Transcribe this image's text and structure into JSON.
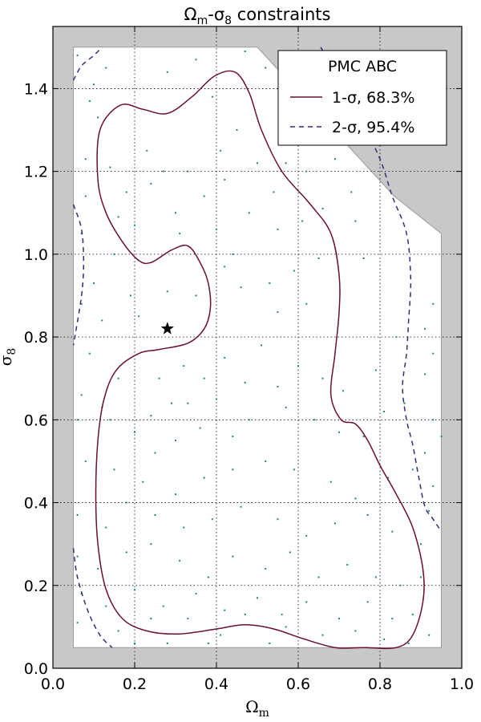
{
  "chart_data": {
    "type": "scatter",
    "title": "Ωm-σ8 constraints",
    "xlabel": "Ωm",
    "ylabel": "σ8",
    "xlim": [
      0.0,
      1.0
    ],
    "ylim": [
      0.0,
      1.55
    ],
    "x_ticks": [
      "0.0",
      "0.2",
      "0.4",
      "0.6",
      "0.8",
      "1.0"
    ],
    "y_ticks": [
      "0.0",
      "0.2",
      "0.4",
      "0.6",
      "0.8",
      "1.0",
      "1.2",
      "1.4"
    ],
    "grid": true,
    "legend": {
      "title": "PMC ABC",
      "placement": "top-right",
      "entries": [
        {
          "label": "1-σ, 68.3%",
          "style": "solid",
          "color": "#6b0f2f"
        },
        {
          "label": "2-σ, 95.4%",
          "style": "dashed",
          "color": "#2e2f7a"
        }
      ]
    },
    "excluded_region_color": "#c8c8c8",
    "prior_region": [
      [
        0.05,
        0.05
      ],
      [
        0.95,
        0.05
      ],
      [
        0.95,
        1.05
      ],
      [
        0.835,
        1.14
      ],
      [
        0.5,
        1.5
      ],
      [
        0.05,
        1.5
      ]
    ],
    "fiducial_marker": {
      "x": 0.28,
      "y": 0.82,
      "symbol": "star"
    },
    "series": [
      {
        "name": "1-σ, 68.3%",
        "style": "solid",
        "color": "#6b0f2f",
        "closed": true,
        "points": [
          [
            0.24,
            0.98
          ],
          [
            0.29,
            1.01
          ],
          [
            0.33,
            1.02
          ],
          [
            0.36,
            0.98
          ],
          [
            0.38,
            0.93
          ],
          [
            0.385,
            0.87
          ],
          [
            0.37,
            0.82
          ],
          [
            0.33,
            0.785
          ],
          [
            0.26,
            0.77
          ],
          [
            0.21,
            0.76
          ],
          [
            0.155,
            0.72
          ],
          [
            0.125,
            0.65
          ],
          [
            0.11,
            0.55
          ],
          [
            0.105,
            0.42
          ],
          [
            0.11,
            0.3
          ],
          [
            0.13,
            0.19
          ],
          [
            0.17,
            0.12
          ],
          [
            0.23,
            0.09
          ],
          [
            0.31,
            0.083
          ],
          [
            0.4,
            0.095
          ],
          [
            0.47,
            0.105
          ],
          [
            0.54,
            0.095
          ],
          [
            0.61,
            0.072
          ],
          [
            0.69,
            0.05
          ],
          [
            0.76,
            0.05
          ],
          [
            0.84,
            0.05
          ],
          [
            0.88,
            0.08
          ],
          [
            0.905,
            0.16
          ],
          [
            0.905,
            0.24
          ],
          [
            0.88,
            0.34
          ],
          [
            0.84,
            0.42
          ],
          [
            0.8,
            0.49
          ],
          [
            0.77,
            0.55
          ],
          [
            0.74,
            0.59
          ],
          [
            0.705,
            0.6
          ],
          [
            0.68,
            0.66
          ],
          [
            0.69,
            0.76
          ],
          [
            0.7,
            0.86
          ],
          [
            0.7,
            0.95
          ],
          [
            0.68,
            1.05
          ],
          [
            0.63,
            1.12
          ],
          [
            0.56,
            1.2
          ],
          [
            0.51,
            1.3
          ],
          [
            0.48,
            1.39
          ],
          [
            0.445,
            1.44
          ],
          [
            0.395,
            1.43
          ],
          [
            0.34,
            1.38
          ],
          [
            0.28,
            1.34
          ],
          [
            0.22,
            1.35
          ],
          [
            0.165,
            1.36
          ],
          [
            0.115,
            1.3
          ],
          [
            0.11,
            1.18
          ],
          [
            0.13,
            1.1
          ],
          [
            0.17,
            1.03
          ],
          [
            0.21,
            0.985
          ]
        ]
      },
      {
        "name": "2-σ, 95.4%",
        "style": "dashed",
        "color": "#2e2f7a",
        "closed": false,
        "segments": [
          [
            [
              0.05,
              1.42
            ],
            [
              0.07,
              1.455
            ],
            [
              0.1,
              1.48
            ],
            [
              0.12,
              1.5
            ]
          ],
          [
            [
              0.05,
              1.12
            ],
            [
              0.07,
              1.06
            ],
            [
              0.075,
              0.98
            ],
            [
              0.07,
              0.9
            ],
            [
              0.05,
              0.78
            ]
          ],
          [
            [
              0.05,
              0.29
            ],
            [
              0.06,
              0.22
            ],
            [
              0.085,
              0.14
            ],
            [
              0.115,
              0.08
            ],
            [
              0.145,
              0.05
            ]
          ],
          [
            [
              0.655,
              1.5
            ],
            [
              0.7,
              1.42
            ],
            [
              0.75,
              1.33
            ],
            [
              0.8,
              1.23
            ],
            [
              0.83,
              1.14
            ],
            [
              0.865,
              1.05
            ],
            [
              0.875,
              0.94
            ],
            [
              0.87,
              0.84
            ],
            [
              0.865,
              0.76
            ],
            [
              0.855,
              0.68
            ],
            [
              0.865,
              0.6
            ],
            [
              0.88,
              0.54
            ],
            [
              0.895,
              0.46
            ],
            [
              0.91,
              0.39
            ],
            [
              0.93,
              0.36
            ],
            [
              0.95,
              0.33
            ]
          ]
        ]
      },
      {
        "name": "",
        "style": "dots",
        "color": "#1a8a6a",
        "points": [
          [
            0.06,
            1.48
          ],
          [
            0.1,
            1.41
          ],
          [
            0.13,
            1.45
          ],
          [
            0.09,
            1.37
          ],
          [
            0.11,
            1.33
          ],
          [
            0.28,
            1.44
          ],
          [
            0.35,
            1.47
          ],
          [
            0.47,
            1.49
          ],
          [
            0.39,
            1.38
          ],
          [
            0.52,
            1.45
          ],
          [
            0.45,
            1.3
          ],
          [
            0.56,
            1.32
          ],
          [
            0.58,
            1.4
          ],
          [
            0.63,
            1.29
          ],
          [
            0.62,
            1.2
          ],
          [
            0.57,
            1.22
          ],
          [
            0.69,
            1.23
          ],
          [
            0.73,
            1.15
          ],
          [
            0.66,
            1.11
          ],
          [
            0.74,
            1.08
          ],
          [
            0.76,
            0.99
          ],
          [
            0.61,
            1.08
          ],
          [
            0.54,
            1.15
          ],
          [
            0.5,
            1.22
          ],
          [
            0.41,
            1.25
          ],
          [
            0.3,
            1.1
          ],
          [
            0.27,
            1.2
          ],
          [
            0.23,
            1.25
          ],
          [
            0.18,
            1.15
          ],
          [
            0.16,
            1.09
          ],
          [
            0.2,
            1.07
          ],
          [
            0.31,
            1.05
          ],
          [
            0.4,
            1.06
          ],
          [
            0.44,
            1.0
          ],
          [
            0.48,
            1.1
          ],
          [
            0.55,
            1.06
          ],
          [
            0.59,
            0.96
          ],
          [
            0.65,
            0.99
          ],
          [
            0.53,
            0.93
          ],
          [
            0.46,
            0.92
          ],
          [
            0.42,
            0.97
          ],
          [
            0.35,
            0.9
          ],
          [
            0.19,
            0.9
          ],
          [
            0.28,
            0.91
          ],
          [
            0.21,
            0.85
          ],
          [
            0.1,
            0.93
          ],
          [
            0.07,
            0.88
          ],
          [
            0.12,
            0.84
          ],
          [
            0.09,
            0.76
          ],
          [
            0.16,
            0.7
          ],
          [
            0.07,
            0.66
          ],
          [
            0.12,
            0.63
          ],
          [
            0.24,
            0.61
          ],
          [
            0.29,
            0.64
          ],
          [
            0.32,
            0.73
          ],
          [
            0.37,
            0.7
          ],
          [
            0.42,
            0.75
          ],
          [
            0.51,
            0.78
          ],
          [
            0.55,
            0.86
          ],
          [
            0.62,
            0.88
          ],
          [
            0.6,
            0.73
          ],
          [
            0.66,
            0.7
          ],
          [
            0.71,
            0.67
          ],
          [
            0.79,
            0.72
          ],
          [
            0.84,
            0.8
          ],
          [
            0.91,
            0.82
          ],
          [
            0.93,
            0.88
          ],
          [
            0.93,
            0.76
          ],
          [
            0.81,
            0.62
          ],
          [
            0.76,
            0.56
          ],
          [
            0.7,
            0.57
          ],
          [
            0.64,
            0.6
          ],
          [
            0.57,
            0.63
          ],
          [
            0.48,
            0.6
          ],
          [
            0.44,
            0.56
          ],
          [
            0.36,
            0.58
          ],
          [
            0.3,
            0.55
          ],
          [
            0.25,
            0.52
          ],
          [
            0.2,
            0.57
          ],
          [
            0.14,
            0.6
          ],
          [
            0.06,
            0.6
          ],
          [
            0.08,
            0.5
          ],
          [
            0.15,
            0.48
          ],
          [
            0.22,
            0.45
          ],
          [
            0.3,
            0.42
          ],
          [
            0.37,
            0.46
          ],
          [
            0.44,
            0.48
          ],
          [
            0.52,
            0.5
          ],
          [
            0.59,
            0.48
          ],
          [
            0.68,
            0.45
          ],
          [
            0.74,
            0.41
          ],
          [
            0.82,
            0.46
          ],
          [
            0.91,
            0.52
          ],
          [
            0.93,
            0.6
          ],
          [
            0.88,
            0.48
          ],
          [
            0.06,
            0.37
          ],
          [
            0.13,
            0.34
          ],
          [
            0.18,
            0.4
          ],
          [
            0.25,
            0.37
          ],
          [
            0.32,
            0.34
          ],
          [
            0.39,
            0.36
          ],
          [
            0.46,
            0.39
          ],
          [
            0.55,
            0.36
          ],
          [
            0.62,
            0.32
          ],
          [
            0.69,
            0.35
          ],
          [
            0.77,
            0.37
          ],
          [
            0.83,
            0.33
          ],
          [
            0.9,
            0.3
          ],
          [
            0.06,
            0.27
          ],
          [
            0.11,
            0.24
          ],
          [
            0.18,
            0.28
          ],
          [
            0.24,
            0.3
          ],
          [
            0.31,
            0.26
          ],
          [
            0.38,
            0.22
          ],
          [
            0.44,
            0.27
          ],
          [
            0.52,
            0.24
          ],
          [
            0.58,
            0.28
          ],
          [
            0.65,
            0.22
          ],
          [
            0.72,
            0.25
          ],
          [
            0.79,
            0.22
          ],
          [
            0.85,
            0.2
          ],
          [
            0.9,
            0.22
          ],
          [
            0.07,
            0.18
          ],
          [
            0.13,
            0.15
          ],
          [
            0.2,
            0.19
          ],
          [
            0.27,
            0.15
          ],
          [
            0.35,
            0.18
          ],
          [
            0.42,
            0.14
          ],
          [
            0.5,
            0.17
          ],
          [
            0.56,
            0.13
          ],
          [
            0.62,
            0.16
          ],
          [
            0.7,
            0.12
          ],
          [
            0.77,
            0.16
          ],
          [
            0.83,
            0.12
          ],
          [
            0.88,
            0.13
          ],
          [
            0.06,
            0.11
          ],
          [
            0.16,
            0.09
          ],
          [
            0.24,
            0.12
          ],
          [
            0.33,
            0.12
          ],
          [
            0.41,
            0.08
          ],
          [
            0.47,
            0.13
          ],
          [
            0.57,
            0.1
          ],
          [
            0.66,
            0.08
          ],
          [
            0.74,
            0.09
          ],
          [
            0.81,
            0.07
          ],
          [
            0.92,
            0.08
          ],
          [
            0.2,
            0.06
          ],
          [
            0.28,
            0.06
          ],
          [
            0.38,
            0.06
          ],
          [
            0.53,
            0.06
          ],
          [
            0.87,
            0.06
          ],
          [
            0.08,
            1.23
          ],
          [
            0.14,
            1.21
          ],
          [
            0.07,
            1.05
          ],
          [
            0.33,
            1.2
          ],
          [
            0.37,
            1.14
          ],
          [
            0.42,
            1.18
          ],
          [
            0.24,
            1.17
          ],
          [
            0.08,
            1.14
          ],
          [
            0.15,
            1.0
          ],
          [
            0.26,
            0.7
          ],
          [
            0.33,
            0.64
          ],
          [
            0.4,
            0.65
          ],
          [
            0.47,
            0.69
          ],
          [
            0.55,
            0.68
          ],
          [
            0.86,
            0.64
          ],
          [
            0.91,
            0.71
          ],
          [
            0.95,
            0.56
          ],
          [
            0.93,
            0.44
          ],
          [
            0.92,
            0.38
          ]
        ]
      }
    ]
  }
}
